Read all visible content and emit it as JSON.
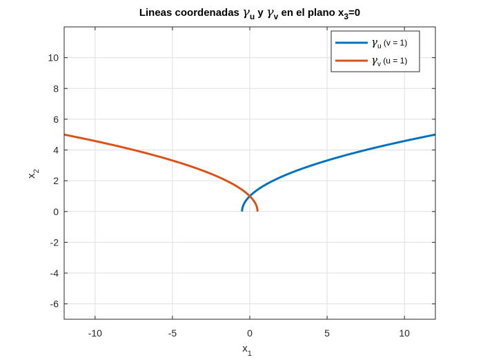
{
  "chart_data": {
    "type": "line",
    "title": {
      "prefix": "Lineas coordenadas ",
      "sym1": "γ",
      "sub1": "u",
      "mid": " y ",
      "sym2": "γ",
      "sub2": "v",
      "tail": " en el plano x",
      "sub3": "3",
      "end": "=0"
    },
    "xlabel": {
      "base": "x",
      "sub": "1"
    },
    "ylabel": {
      "base": "x",
      "sub": "2"
    },
    "xlim": [
      -12,
      12
    ],
    "ylim": [
      -7,
      12
    ],
    "xticks": [
      -10,
      -5,
      0,
      5,
      10
    ],
    "yticks": [
      -6,
      -4,
      -2,
      0,
      2,
      4,
      6,
      8,
      10
    ],
    "xtick_labels": [
      "-10",
      "-5",
      "0",
      "5",
      "10"
    ],
    "ytick_labels": [
      "-6",
      "-4",
      "-2",
      "0",
      "2",
      "4",
      "6",
      "8",
      "10"
    ],
    "grid": true,
    "legend_position": "top-right",
    "series": [
      {
        "sym": "γ",
        "sub": "u",
        "param": " (v = 1)",
        "color": "#0072BD",
        "x": [
          -0.5,
          -0.375,
          0.0,
          0.625,
          1.5,
          2.625,
          4.0,
          5.625,
          7.5,
          9.625,
          12.0
        ],
        "y": [
          0.0,
          0.5,
          1.0,
          1.5,
          2.0,
          2.5,
          3.0,
          3.5,
          4.0,
          4.5,
          5.0
        ]
      },
      {
        "sym": "γ",
        "sub": "v",
        "param": " (u = 1)",
        "color": "#D95319",
        "x": [
          0.5,
          0.375,
          0.0,
          -0.625,
          -1.5,
          -2.625,
          -4.0,
          -5.625,
          -7.5,
          -9.625,
          -12.0
        ],
        "y": [
          0.0,
          0.5,
          1.0,
          1.5,
          2.0,
          2.5,
          3.0,
          3.5,
          4.0,
          4.5,
          5.0
        ]
      }
    ]
  }
}
